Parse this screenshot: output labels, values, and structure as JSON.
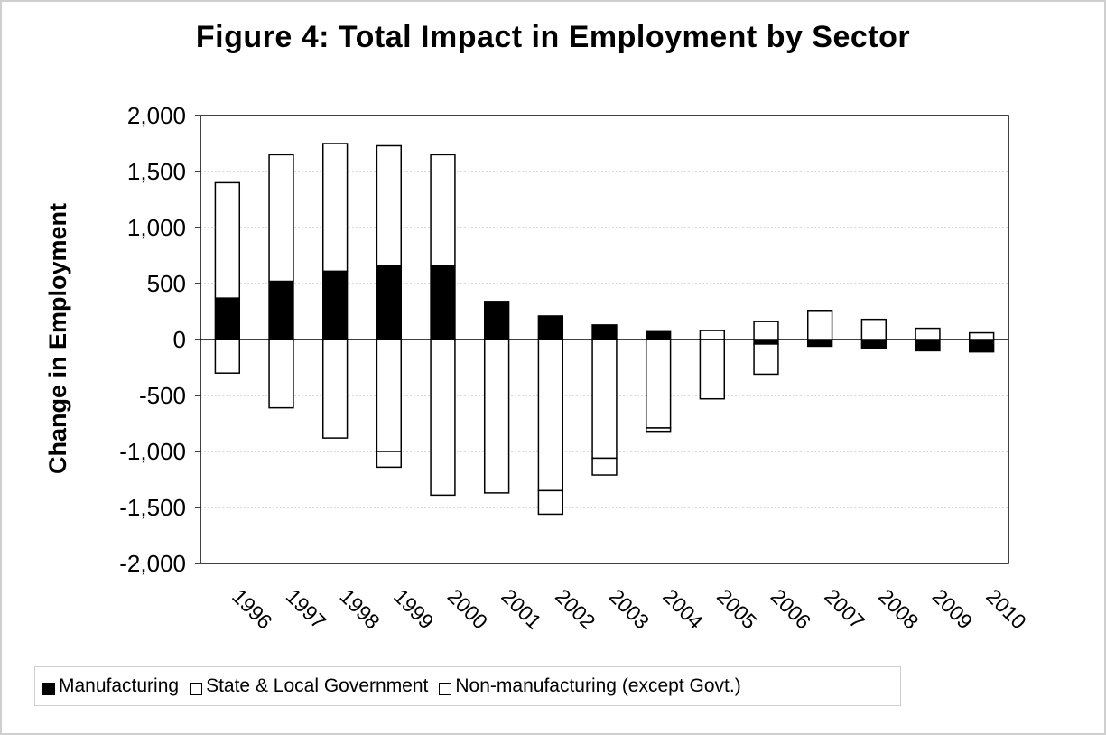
{
  "chart_data": {
    "type": "bar",
    "stacked": true,
    "title": "Figure 4:  Total Impact in Employment by Sector",
    "xlabel": "",
    "ylabel": "Change in Employment",
    "ylim": [
      -2000,
      2000
    ],
    "y_ticks": [
      2000,
      1500,
      1000,
      500,
      0,
      -500,
      -1000,
      -1500,
      -2000
    ],
    "y_tick_labels": [
      "2,000",
      "1,500",
      "1,000",
      "500",
      "0",
      "-500",
      "-1,000",
      "-1,500",
      "-2,000"
    ],
    "grid": true,
    "legend_position": "bottom",
    "categories": [
      "1996",
      "1997",
      "1998",
      "1999",
      "2000",
      "2001",
      "2002",
      "2003",
      "2004",
      "2005",
      "2006",
      "2007",
      "2008",
      "2009",
      "2010"
    ],
    "series": [
      {
        "name": "Manufacturing",
        "color": "#000000",
        "values": [
          370,
          520,
          610,
          660,
          660,
          340,
          210,
          130,
          70,
          0,
          -40,
          -60,
          -80,
          -100,
          -110
        ]
      },
      {
        "name": "State & Local Government",
        "color": "#ffffff",
        "values": [
          0,
          0,
          0,
          -1000,
          0,
          0,
          -1350,
          -1060,
          -790,
          0,
          0,
          0,
          0,
          0,
          0
        ]
      },
      {
        "name": "Non-manufacturing (except Govt.)",
        "color": "#ffffff",
        "positive": [
          1030,
          1130,
          1140,
          1070,
          990,
          0,
          0,
          0,
          0,
          80,
          160,
          260,
          180,
          100,
          60
        ],
        "negative": [
          -300,
          -610,
          -880,
          -140,
          -1390,
          -1370,
          -210,
          -150,
          -30,
          -530,
          -270,
          0,
          0,
          0,
          0
        ]
      }
    ]
  }
}
